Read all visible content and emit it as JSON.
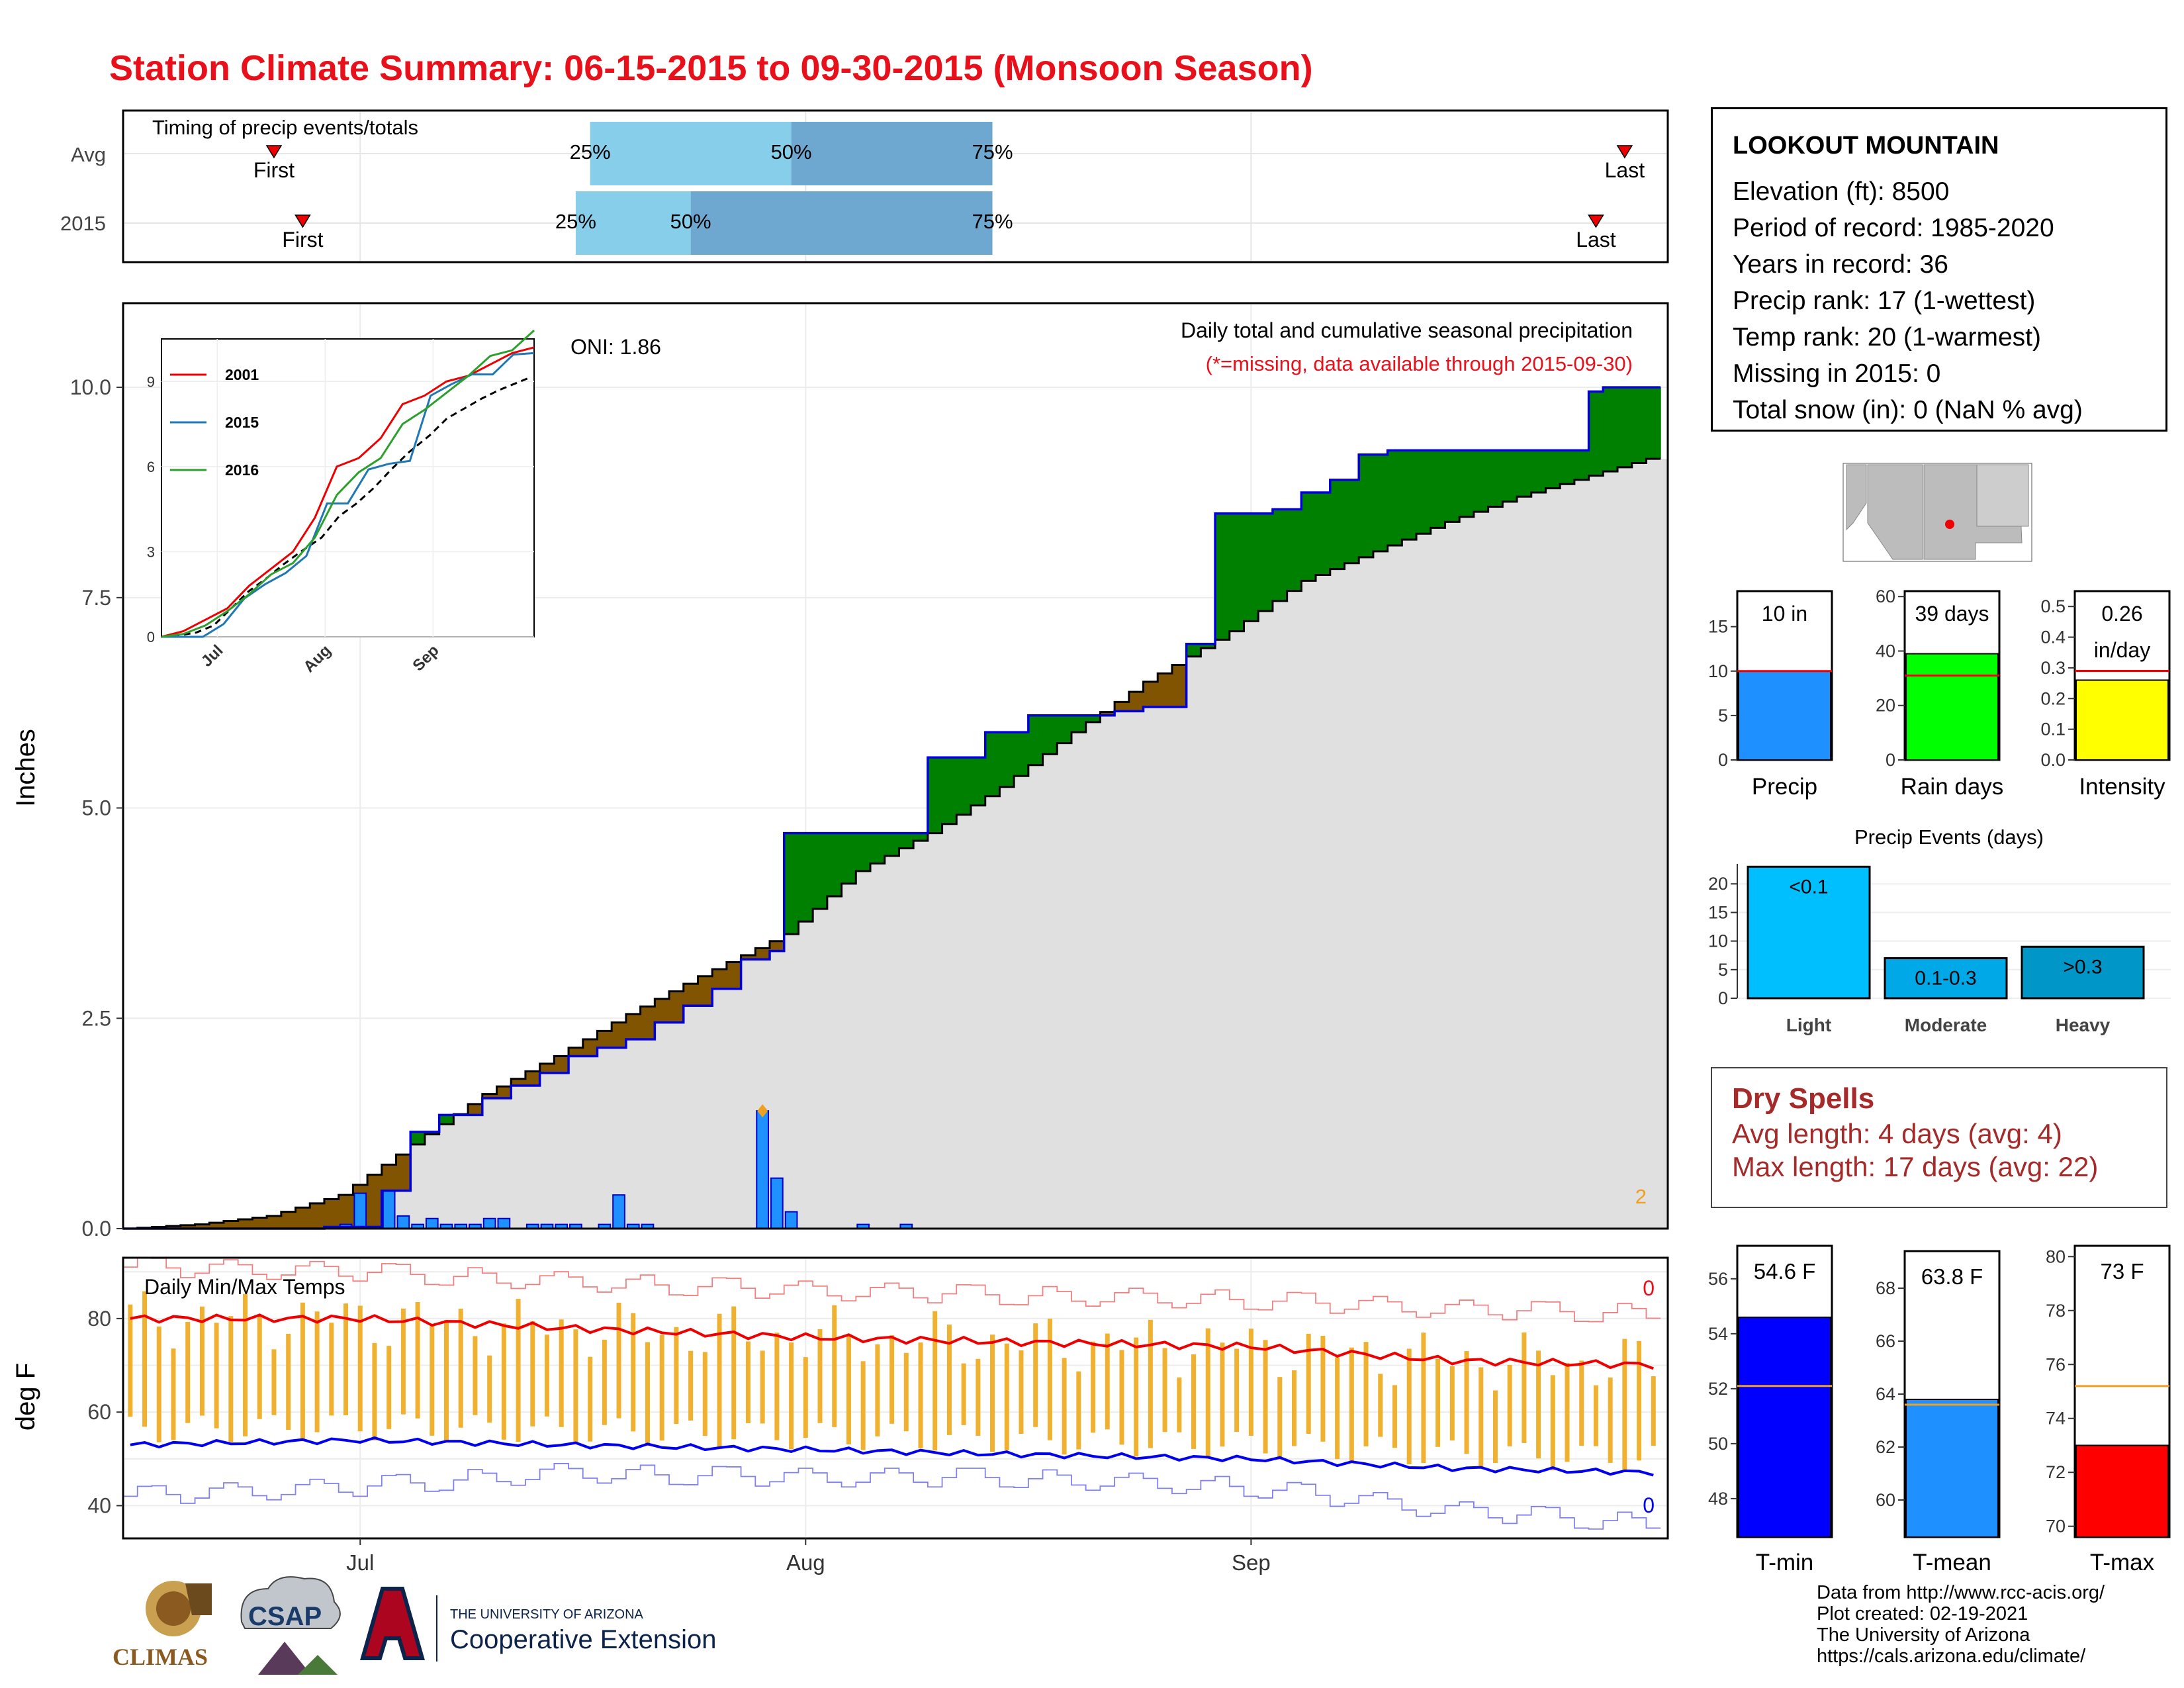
{
  "title": "Station Climate Summary: 06-15-2015 to 09-30-2015 (Monsoon Season)",
  "colors": {
    "title": "#e8101a",
    "above_avg": "#008000",
    "below_avg": "#805400",
    "cum_area": "#e0e0e0",
    "daily_bar": "#1e90ff",
    "timing_q1": "#87ceeb",
    "timing_q2": "#6ea8d0",
    "tmax_line": "#ee0000",
    "tmin_line": "#0000ee",
    "range_bar": "#f0b030"
  },
  "timing": {
    "label": "Timing of precip events/totals",
    "rows": [
      "Avg",
      "2015"
    ],
    "first_label": "First",
    "last_label": "Last",
    "pct": [
      "25%",
      "50%",
      "75%"
    ],
    "avg": {
      "first": "2015-06-25",
      "q25": "2015-07-17",
      "q50": "2015-07-31",
      "q75": "2015-08-14",
      "last": "2015-09-27"
    },
    "y2015": {
      "first": "2015-06-27",
      "q25": "2015-07-16",
      "q50": "2015-07-24",
      "q75": "2015-08-14",
      "last": "2015-09-25"
    }
  },
  "station": {
    "name": "LOOKOUT MOUNTAIN",
    "lines": [
      "Elevation (ft): 8500",
      "Period of record: 1985-2020",
      "Years in record: 36",
      "Precip rank: 17 (1-wettest)",
      "Temp rank: 20 (1-warmest)",
      "Missing in 2015: 0",
      "Total snow (in): 0 (NaN % avg)"
    ]
  },
  "precip_panel": {
    "ylabel": "Inches",
    "annotation": "Daily total and cumulative seasonal precipitation",
    "missing_note": "(*=missing, data available through 2015-09-30)",
    "oni": "ONI: 1.86",
    "corner_count": "2",
    "month_labels": [
      "Jul",
      "Aug",
      "Sep"
    ]
  },
  "temp_panel": {
    "ylabel": "deg F",
    "label": "Daily Min/Max Temps",
    "tmax_count": "0",
    "tmin_count": "0"
  },
  "summary_bars": {
    "precip": {
      "label": "Precip",
      "value_text": "10 in",
      "value": 10,
      "avg": 10
    },
    "raindays": {
      "label": "Rain days",
      "value_text": "39 days",
      "value": 39,
      "avg": 31
    },
    "intensity": {
      "label": "Intensity",
      "value_text": "0.26",
      "unit_text": "in/day",
      "value": 0.26,
      "avg": 0.29
    }
  },
  "events": {
    "title": "Precip Events (days)",
    "categories": [
      "Light",
      "Moderate",
      "Heavy"
    ],
    "labels": [
      "<0.1",
      "0.1-0.3",
      ">0.3"
    ],
    "values": [
      23,
      7,
      9
    ]
  },
  "dry_spells": {
    "title": "Dry Spells",
    "avg_length": "Avg length: 4 days (avg: 4)",
    "max_length": "Max length: 17 days (avg: 22)"
  },
  "temp_bars": {
    "tmin": {
      "label": "T-min",
      "value_text": "54.6 F",
      "value": 54.6,
      "avg": 52.1
    },
    "tmean": {
      "label": "T-mean",
      "value_text": "63.8 F",
      "value": 63.8,
      "avg": 63.6
    },
    "tmax": {
      "label": "T-max",
      "value_text": "73 F",
      "value": 73.0,
      "avg": 75.2
    }
  },
  "credits": [
    "Data from http://www.rcc-acis.org/",
    "Plot created: 02-19-2021",
    "The University of Arizona",
    "https://cals.arizona.edu/climate/"
  ],
  "logos": {
    "climas": "CLIMAS",
    "csap": "CSAP",
    "ua_line1": "THE UNIVERSITY OF ARIZONA",
    "ua_line2": "Cooperative Extension"
  },
  "chart_data": [
    {
      "type": "area",
      "title": "Daily total and cumulative seasonal precipitation",
      "ylabel": "Inches",
      "ylim": [
        0,
        11
      ],
      "x_range": [
        "2015-06-15",
        "2015-09-30"
      ],
      "yticks": [
        0.0,
        2.5,
        5.0,
        7.5,
        10.0
      ],
      "series": [
        {
          "name": "2015 daily precip",
          "x": [
            "06-29",
            "06-30",
            "07-01",
            "07-02",
            "07-03",
            "07-04",
            "07-05",
            "07-06",
            "07-07",
            "07-08",
            "07-09",
            "07-10",
            "07-11",
            "07-12",
            "07-13",
            "07-14",
            "07-15",
            "07-16",
            "07-17",
            "07-18",
            "07-19",
            "07-20",
            "07-21",
            "07-22",
            "07-23",
            "07-24",
            "07-25",
            "07-26",
            "07-27",
            "07-28",
            "07-29",
            "07-30",
            "07-31",
            "08-05",
            "08-06",
            "08-07",
            "08-08",
            "08-14",
            "08-15",
            "08-16",
            "08-17",
            "08-18",
            "08-19",
            "08-20",
            "08-21",
            "08-22",
            "08-23",
            "08-24",
            "08-25",
            "08-26",
            "08-27",
            "08-28",
            "08-29",
            "08-30",
            "08-31",
            "09-01",
            "09-02",
            "09-03",
            "09-04",
            "09-05",
            "09-06",
            "09-07",
            "09-08",
            "09-09",
            "09-10",
            "09-11",
            "09-12",
            "09-13",
            "09-14",
            "09-15",
            "09-16",
            "09-17",
            "09-18",
            "09-19",
            "09-20",
            "09-21",
            "09-22",
            "09-23",
            "09-24",
            "09-25",
            "09-26",
            "09-27",
            "09-28",
            "09-29",
            "09-30"
          ],
          "values": [
            0.02,
            0.05,
            0.42,
            0.0,
            0.45,
            0.15,
            0.05,
            0.12,
            0.05,
            0.05,
            0.05,
            0.12,
            0.12,
            0.0,
            0.05,
            0.05,
            0.05,
            0.05,
            0.0,
            0.05,
            0.4,
            0.05,
            0.05,
            0.0,
            0.0,
            0.0,
            0.0,
            0.0,
            0.0,
            0.0,
            1.4,
            0.6,
            0.2,
            0.05,
            0.0,
            0.0,
            0.05,
            0.0,
            0.0,
            0.0,
            0.0,
            0.0,
            0.0,
            0.0,
            0.0,
            0.0,
            0.0,
            0.0,
            0.0,
            0.0,
            0.0,
            0.0,
            0.0,
            0.0,
            0.0,
            0.0,
            0.0,
            0.0,
            0.0,
            0.0,
            0.0,
            0.0,
            0.0,
            0.0,
            0.0,
            0.0,
            0.0,
            0.0,
            0.0,
            0.0,
            0.0,
            0.0,
            0.0,
            0.0,
            0.0,
            0.0,
            0.0,
            0.0,
            0.0,
            0.0,
            0.0,
            0.0,
            0.0,
            0.0,
            0.0
          ]
        },
        {
          "name": "2015 cumulative",
          "x": [
            "06-15",
            "06-29",
            "07-03",
            "07-05",
            "07-07",
            "07-10",
            "07-12",
            "07-14",
            "07-16",
            "07-18",
            "07-20",
            "07-22",
            "07-24",
            "07-26",
            "07-28",
            "07-30",
            "07-31",
            "08-10",
            "08-14",
            "08-17",
            "08-20",
            "08-23",
            "08-25",
            "08-28",
            "08-30",
            "09-03",
            "09-05",
            "09-07",
            "09-09",
            "09-11",
            "09-25",
            "09-26",
            "09-30"
          ],
          "values": [
            0.0,
            0.02,
            0.45,
            1.15,
            1.35,
            1.55,
            1.7,
            1.85,
            2.05,
            2.15,
            2.25,
            2.45,
            2.65,
            2.85,
            3.2,
            3.3,
            4.7,
            5.6,
            5.9,
            6.1,
            6.1,
            6.15,
            6.2,
            6.95,
            8.5,
            8.55,
            8.75,
            8.9,
            9.2,
            9.25,
            9.95,
            10.0,
            10.0
          ]
        },
        {
          "name": "average cumulative",
          "x": [
            "06-15",
            "06-20",
            "06-25",
            "06-30",
            "07-05",
            "07-10",
            "07-15",
            "07-20",
            "07-25",
            "07-31",
            "08-05",
            "08-10",
            "08-15",
            "08-20",
            "08-25",
            "08-31",
            "09-05",
            "09-10",
            "09-15",
            "09-20",
            "09-25",
            "09-30"
          ],
          "values": [
            0.0,
            0.05,
            0.15,
            0.4,
            1.0,
            1.6,
            2.05,
            2.55,
            3.0,
            3.5,
            4.25,
            4.7,
            5.25,
            5.9,
            6.5,
            7.1,
            7.7,
            8.05,
            8.4,
            8.7,
            8.95,
            9.2
          ]
        }
      ]
    },
    {
      "type": "line",
      "title": "Daily Min/Max Temps",
      "ylabel": "deg F",
      "ylim": [
        33,
        93
      ],
      "yticks": [
        40,
        60,
        80
      ],
      "x_range": [
        "2015-06-15",
        "2015-09-30"
      ],
      "series": [
        {
          "name": "avg tmax",
          "x": [
            "06-15",
            "07-01",
            "07-15",
            "08-01",
            "08-15",
            "09-01",
            "09-15",
            "09-30"
          ],
          "values": [
            80,
            80,
            78,
            76,
            75,
            74,
            71,
            70
          ]
        },
        {
          "name": "avg tmin",
          "x": [
            "06-15",
            "07-01",
            "07-15",
            "08-01",
            "08-15",
            "09-01",
            "09-15",
            "09-30"
          ],
          "values": [
            53,
            54,
            53,
            52,
            51,
            50,
            48,
            47
          ]
        },
        {
          "name": "record max",
          "x": [
            "06-15",
            "07-01",
            "07-15",
            "08-01",
            "08-15",
            "09-01",
            "09-15",
            "09-30"
          ],
          "values": [
            91,
            90,
            88,
            86,
            85,
            84,
            82,
            81
          ]
        },
        {
          "name": "record min",
          "x": [
            "06-15",
            "07-01",
            "07-15",
            "08-01",
            "08-15",
            "09-01",
            "09-15",
            "09-30"
          ],
          "values": [
            42,
            44,
            47,
            46,
            46,
            44,
            39,
            36
          ]
        }
      ]
    },
    {
      "type": "inset-line",
      "series_names": [
        "2001",
        "2015",
        "2016"
      ],
      "x_labels": [
        "Jul",
        "Aug",
        "Sep"
      ],
      "yticks": [
        0,
        3,
        6,
        9
      ],
      "ylim": [
        0,
        10.5
      ]
    }
  ]
}
